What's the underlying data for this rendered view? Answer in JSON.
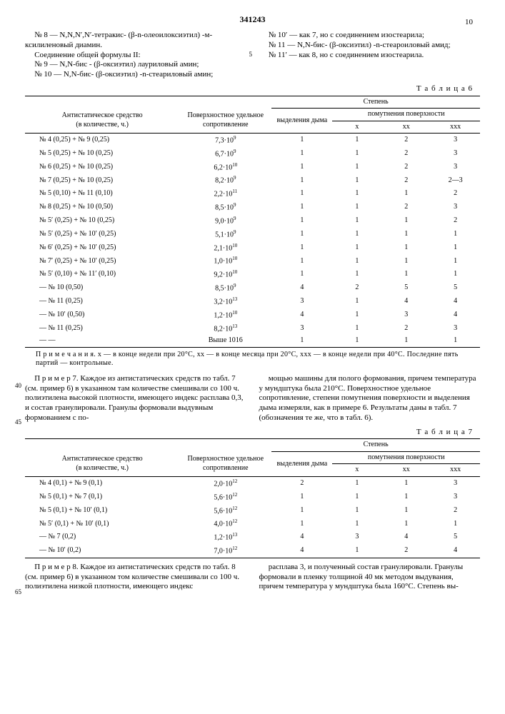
{
  "docNumber": "341243",
  "rightPageNo": "10",
  "leftCol": {
    "l1": "№ 8 — N,N,N′,N′-тетракис- (β-n-олеоилоксиэтил) -м-ксилиленовый диамин.",
    "l2": "Соединение общей формулы II:",
    "l3": "№ 9 — N,N-бис - (β-оксиэтил) лауриловый амин;",
    "l4": "№ 10 — N,N-бис- (β-оксиэтил) -n-стеариловый амин;"
  },
  "rightCol": {
    "l1": "№ 10′ — как 7, но с соединением изостеарила;",
    "l2": "№ 11 — N,N-бис- (β-оксиэтил) -n-стеароиловый амид;",
    "l3": "№ 11′ — как 8, но с соединением изостеарила."
  },
  "ln5": "5",
  "table6Label": "Т а б л и ц а  6",
  "table7Label": "Т а б л и ц а  7",
  "headers": {
    "agent": "Антистатическое средство",
    "agentSub": "(в количестве, ч.)",
    "resist": "Поверхностное удельное сопротивление",
    "degree": "Степень",
    "smoke": "выделения дыма",
    "haze": "помутнения поверхности",
    "x": "x",
    "xx": "xx",
    "xxx": "xxx"
  },
  "t6": [
    {
      "a": "№ 4 (0,25) + № 9 (0,25)",
      "r": "7,3·10⁹",
      "s": "1",
      "x": "1",
      "xx": "2",
      "xxx": "3"
    },
    {
      "a": "№ 5 (0,25) + № 10 (0,25)",
      "r": "6,7·10⁹",
      "s": "1",
      "x": "1",
      "xx": "2",
      "xxx": "3"
    },
    {
      "a": "№ 6 (0,25) + № 10 (0,25)",
      "r": "6,2·10¹⁰",
      "s": "1",
      "x": "1",
      "xx": "2",
      "xxx": "3"
    },
    {
      "a": "№ 7 (0,25) + № 10 (0,25)",
      "r": "8,2·10⁹",
      "s": "1",
      "x": "1",
      "xx": "2",
      "xxx": "2—3"
    },
    {
      "a": "№ 5 (0,10) + № 11 (0,10)",
      "r": "2,2·10¹¹",
      "s": "1",
      "x": "1",
      "xx": "1",
      "xxx": "2"
    },
    {
      "a": "№ 8 (0,25) + № 10 (0,50)",
      "r": "8,5·10⁹",
      "s": "1",
      "x": "1",
      "xx": "2",
      "xxx": "3"
    },
    {
      "a": "№ 5′ (0,25) + № 10 (0,25)",
      "r": "9,0·10⁹",
      "s": "1",
      "x": "1",
      "xx": "1",
      "xxx": "2"
    },
    {
      "a": "№ 5′ (0,25) + № 10′ (0,25)",
      "r": "5,1·10⁹",
      "s": "1",
      "x": "1",
      "xx": "1",
      "xxx": "1"
    },
    {
      "a": "№ 6′ (0,25) + № 10′ (0,25)",
      "r": "2,1·10¹⁰",
      "s": "1",
      "x": "1",
      "xx": "1",
      "xxx": "1"
    },
    {
      "a": "№ 7′ (0,25) + № 10′ (0,25)",
      "r": "1,0·10¹⁰",
      "s": "1",
      "x": "1",
      "xx": "1",
      "xxx": "1"
    },
    {
      "a": "№ 5′ (0,10) + № 11′ (0,10)",
      "r": "9,2·10¹⁰",
      "s": "1",
      "x": "1",
      "xx": "1",
      "xxx": "1"
    },
    {
      "a": "—        № 10 (0,50)",
      "r": "8,5·10⁹",
      "s": "4",
      "x": "2",
      "xx": "5",
      "xxx": "5"
    },
    {
      "a": "—        № 11 (0,25)",
      "r": "3,2·10¹³",
      "s": "3",
      "x": "1",
      "xx": "4",
      "xxx": "4"
    },
    {
      "a": "—        № 10′ (0,50)",
      "r": "1,2·10¹⁰",
      "s": "4",
      "x": "1",
      "xx": "3",
      "xxx": "4"
    },
    {
      "a": "—        № 11 (0,25)",
      "r": "8,2·10¹³",
      "s": "3",
      "x": "1",
      "xx": "2",
      "xxx": "3"
    },
    {
      "a": "—           —",
      "r": "Выше 10¹⁶",
      "s": "1",
      "x": "1",
      "xx": "1",
      "xxx": "1"
    }
  ],
  "note6": "П р и м е ч а н и я. x — в конце недели при 20°C, xx — в конце месяца при 20°C, xxx — в конце недели при 40°C. Последние пять партий — контрольные.",
  "ex7left": "П р и м е р 7. Каждое из антистатических средств по табл. 7 (см. пример 6) в указанном там количестве смешивали со 100 ч. полиэтилена высокой плотности, имеющего индекс расплава 0,3, и состав гранулировали. Гранулы формовали выдувным формованием с по-",
  "ex7right": "мощью машины для полого формования, причем температура у мундштука была 210°C. Поверхностное удельное сопротивление, степени помутнения поверхности и выделения дыма измеряли, как в примере 6. Результаты даны в табл. 7 (обозначения те же, что в табл. 6).",
  "ln40": "40",
  "ln45": "45",
  "t7": [
    {
      "a": "№ 4 (0,1) + № 9 (0,1)",
      "r": "2,0·10¹²",
      "s": "2",
      "x": "1",
      "xx": "1",
      "xxx": "3"
    },
    {
      "a": "№ 5 (0,1) + № 7 (0,1)",
      "r": "5,6·10¹²",
      "s": "1",
      "x": "1",
      "xx": "1",
      "xxx": "3"
    },
    {
      "a": "№ 5 (0,1) + № 10′ (0,1)",
      "r": "5,6·10¹²",
      "s": "1",
      "x": "1",
      "xx": "1",
      "xxx": "2"
    },
    {
      "a": "№ 5′ (0,1) + № 10′ (0,1)",
      "r": "4,0·10¹²",
      "s": "1",
      "x": "1",
      "xx": "1",
      "xxx": "1"
    },
    {
      "a": "—       № 7 (0,2)",
      "r": "1,2·10¹³",
      "s": "4",
      "x": "3",
      "xx": "4",
      "xxx": "5"
    },
    {
      "a": "—       № 10′ (0,2)",
      "r": "7,0·10¹²",
      "s": "4",
      "x": "1",
      "xx": "2",
      "xxx": "4"
    }
  ],
  "ex8left": "П р и м е р 8. Каждое из антистатических средств по табл. 8 (см. пример 6) в указанном том количестве смешивали со 100 ч. полиэтилена низкой плотности, имеющего индекс",
  "ex8right": "расплава 3, и полученный состав гранулировали. Гранулы формовали в пленку толщиной 40 мк методом выдувания, причем температура у мундштука была 160°C. Степень вы-",
  "ln65": "65"
}
